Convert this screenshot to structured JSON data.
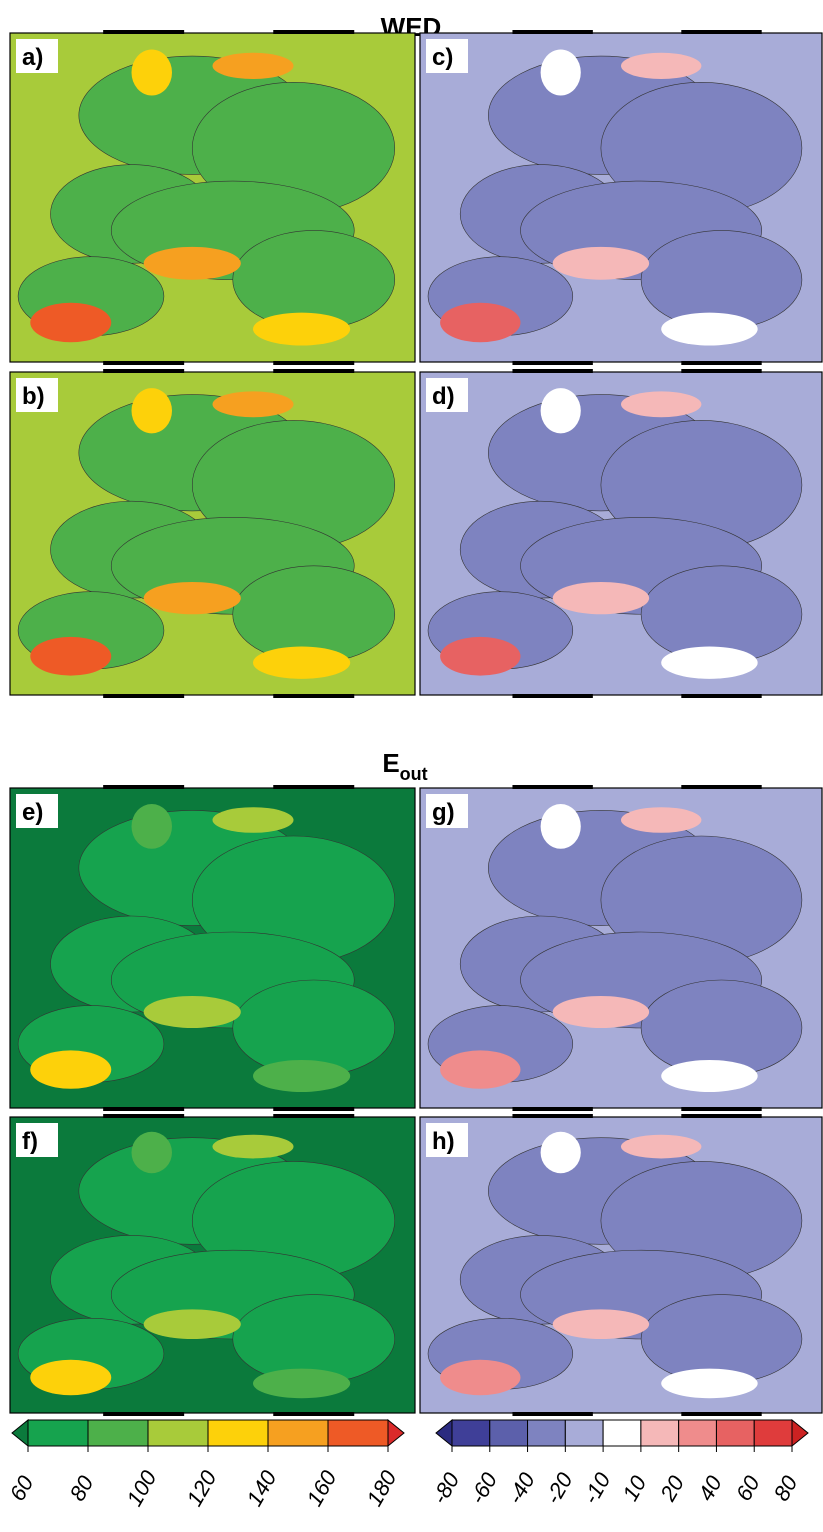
{
  "sections": [
    {
      "title": "WED",
      "panels": [
        "a)",
        "b)",
        "c)",
        "d)"
      ]
    },
    {
      "title": {
        "main": "E",
        "sub": "out"
      },
      "panels": [
        "e)",
        "f)",
        "g)",
        "h)"
      ]
    }
  ],
  "colorbars": [
    {
      "ticks": [
        60,
        80,
        100,
        120,
        140,
        160,
        180
      ],
      "colors": [
        "#16a34e",
        "#4db04a",
        "#a8cb3a",
        "#fdd10a",
        "#f6a020",
        "#ee5a26"
      ],
      "extend_colors": [
        "#0b7a3c",
        "#db2a2a"
      ]
    },
    {
      "ticks": [
        -80,
        -60,
        -40,
        -20,
        -10,
        10,
        20,
        40,
        60,
        80
      ],
      "colors": [
        "#3f3f98",
        "#5c60ab",
        "#7e83c0",
        "#a8acd8",
        "#ffffff",
        "#f5b8b8",
        "#ef8c8c",
        "#e76262",
        "#df3c3c"
      ],
      "extend_colors": [
        "#2b2b80",
        "#cc2222"
      ]
    }
  ]
}
